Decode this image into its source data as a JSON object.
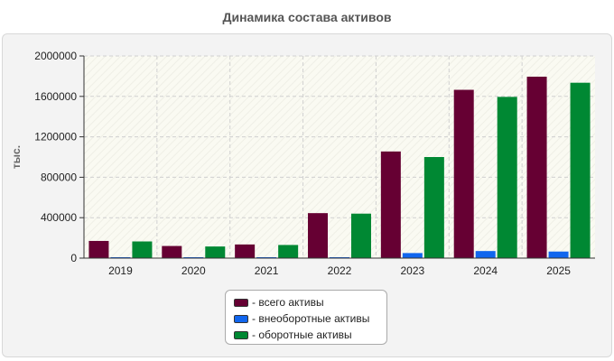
{
  "chart_data": {
    "type": "bar",
    "title": "Динамика состава активов",
    "ylabel": "тыс.",
    "xlabel": "",
    "categories": [
      "2019",
      "2020",
      "2021",
      "2022",
      "2023",
      "2024",
      "2025"
    ],
    "ylim": [
      0,
      2000000
    ],
    "yticks": [
      "0",
      "400000",
      "800000",
      "1200000",
      "1600000",
      "2000000"
    ],
    "grid": true,
    "legend_position": "bottom",
    "series": [
      {
        "name": "- всего активы",
        "color": "#660033",
        "values": [
          170000,
          120000,
          135000,
          445000,
          1055000,
          1665000,
          1795000
        ]
      },
      {
        "name": "- внеоборотные активы",
        "color": "#1166ee",
        "values": [
          5000,
          5000,
          5000,
          5000,
          50000,
          70000,
          65000
        ]
      },
      {
        "name": "- оборотные активы",
        "color": "#008833",
        "values": [
          165000,
          115000,
          130000,
          440000,
          1000000,
          1595000,
          1735000
        ]
      }
    ]
  }
}
